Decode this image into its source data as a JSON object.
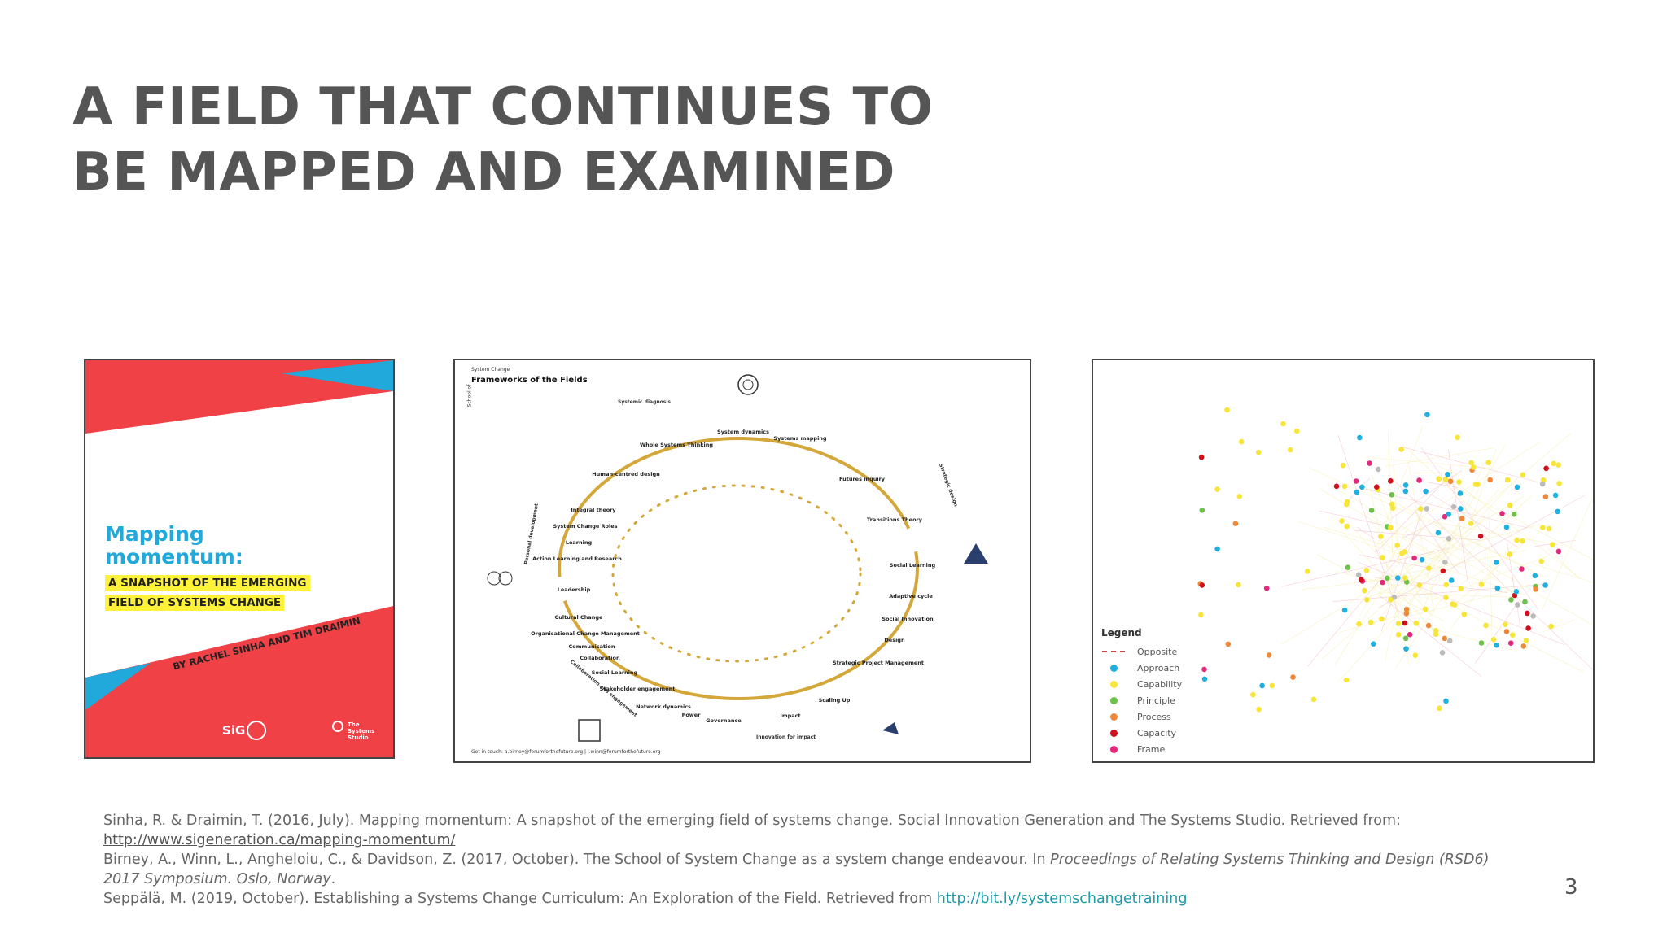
{
  "title": {
    "line1": "A FIELD THAT CONTINUES TO",
    "line2": "BE MAPPED AND EXAMINED"
  },
  "cover": {
    "title_line1": "Mapping",
    "title_line2": "momentum:",
    "highlight_line1": "A SNAPSHOT OF THE EMERGING",
    "highlight_line2": "FIELD OF SYSTEMS CHANGE",
    "authors": "BY RACHEL SINHA AND TIM DRAIMIN",
    "logo_sig": "SiG",
    "logo_studio": "The Systems Studio",
    "colors": {
      "red": "#ef4146",
      "blue": "#21a9dc",
      "yellow": "#fff23a"
    }
  },
  "frameworks": {
    "kicker": "System Change",
    "title": "Frameworks of the Fields",
    "footer": "Get in touch: a.birney@forumforthefuture.org | l.winn@forumforthefuture.org",
    "side_label": "School of",
    "arc_labels": {
      "top": "Systemic diagnosis",
      "right": "Strategic design",
      "bottom": "Innovation for impact",
      "left_bottom": "Collaboration and engagement",
      "left": "Personal development"
    },
    "labels": [
      "System dynamics",
      "Systems mapping",
      "Whole Systems Thinking",
      "Human-centred design",
      "Futures inquiry",
      "Transitions Theory",
      "Integral theory",
      "System Change Roles",
      "Learning",
      "Action Learning and Research",
      "Social Learning",
      "Adaptive cycle",
      "Leadership",
      "Social Innovation",
      "Cultural Change",
      "Organisational Change Management",
      "Design",
      "Communication",
      "Strategic Project Management",
      "Collaboration",
      "Social Learning",
      "Stakeholder engagement",
      "Scaling Up",
      "Network dynamics",
      "Power",
      "Impact",
      "Governance"
    ]
  },
  "network": {
    "legend_title": "Legend",
    "legend": [
      {
        "label": "Opposite",
        "type": "dash",
        "color": "#c94a4a"
      },
      {
        "label": "Approach",
        "type": "dot",
        "color": "#1fb0e0"
      },
      {
        "label": "Capability",
        "type": "dot",
        "color": "#f7e53a"
      },
      {
        "label": "Principle",
        "type": "dot",
        "color": "#6cc24a"
      },
      {
        "label": "Process",
        "type": "dot",
        "color": "#f0883a"
      },
      {
        "label": "Capacity",
        "type": "dot",
        "color": "#d0101d"
      },
      {
        "label": "Frame",
        "type": "dot",
        "color": "#e4287c"
      }
    ]
  },
  "references": {
    "ref1_text": "Sinha, R. & Draimin, T. (2016, July). Mapping momentum: A snapshot of the emerging field of systems change. Social Innovation Generation and The Systems Studio. Retrieved from:",
    "ref1_link": "http://www.sigeneration.ca/mapping-momentum/",
    "ref2_text": "Birney, A., Winn, L., Angheloiu, C., & Davidson, Z. (2017, October). The School of System Change as a system change endeavour. In ",
    "ref2_italic": "Proceedings of Relating Systems Thinking and Design (RSD6) 2017 Symposium. Oslo, Norway",
    "ref2_end": ".",
    "ref3_text": "Seppälä, M. (2019, October). Establishing a Systems Change Curriculum: An Exploration of the Field. Retrieved from ",
    "ref3_link": "http://bit.ly/systemschangetraining"
  },
  "page_number": "3"
}
